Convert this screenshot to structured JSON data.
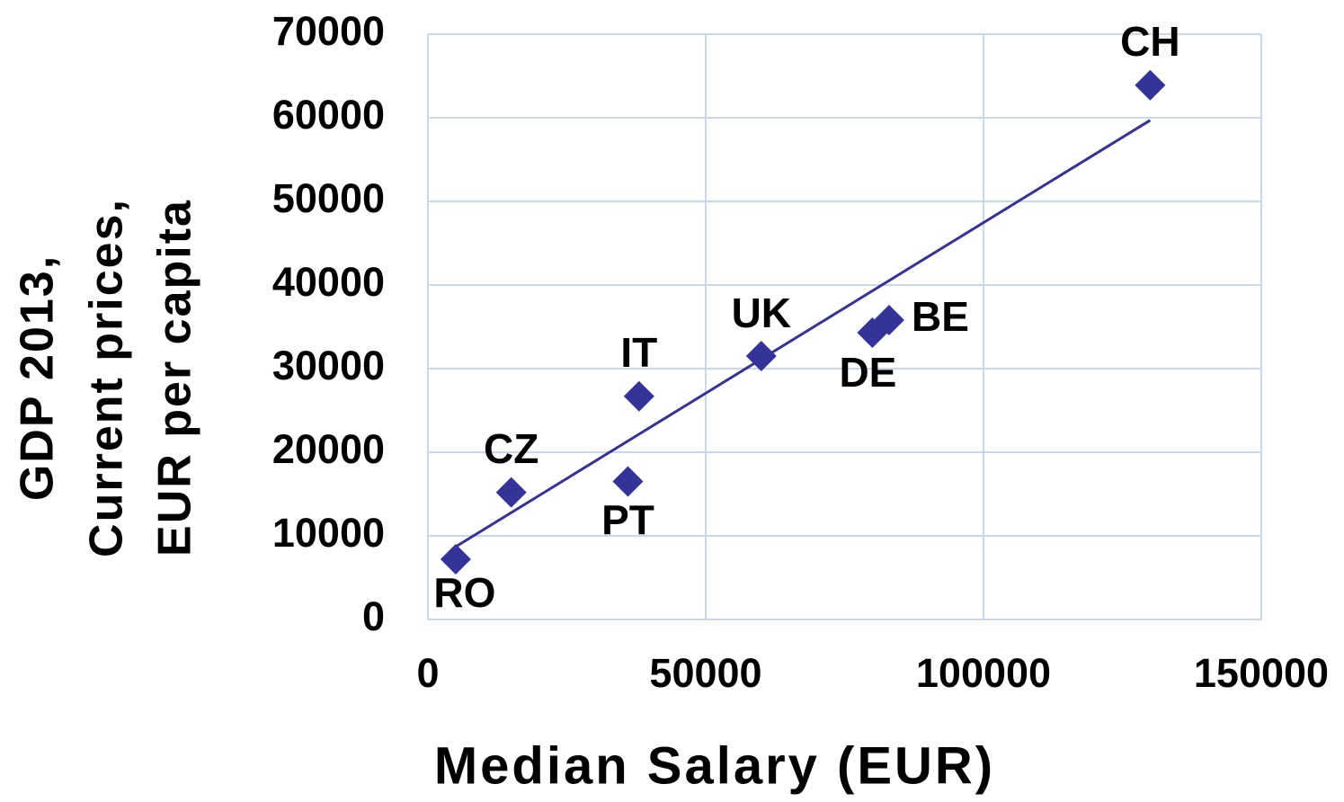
{
  "chart_data": {
    "type": "scatter",
    "xlabel": "Median Salary (EUR)",
    "ylabel": [
      "GDP 2013,",
      "Current prices,",
      "EUR  per capita"
    ],
    "labels": [
      "RO",
      "CZ",
      "PT",
      "IT",
      "UK",
      "DE",
      "BE",
      "CH"
    ],
    "x": [
      5000,
      15000,
      36000,
      38000,
      60000,
      80000,
      83000,
      130000
    ],
    "values": [
      7200,
      15200,
      16500,
      26700,
      31500,
      34300,
      35800,
      63900
    ],
    "color": "#333399",
    "trendline": {
      "x": [
        5000,
        130000
      ],
      "values": [
        8700,
        59700
      ],
      "color": "#333399"
    },
    "xlim": [
      0,
      150000
    ],
    "xticks": [
      0,
      50000,
      100000,
      150000
    ],
    "ylim": [
      0,
      70000
    ],
    "yticks": [
      0,
      10000,
      20000,
      30000,
      40000,
      50000,
      60000,
      70000
    ],
    "grid": true
  }
}
